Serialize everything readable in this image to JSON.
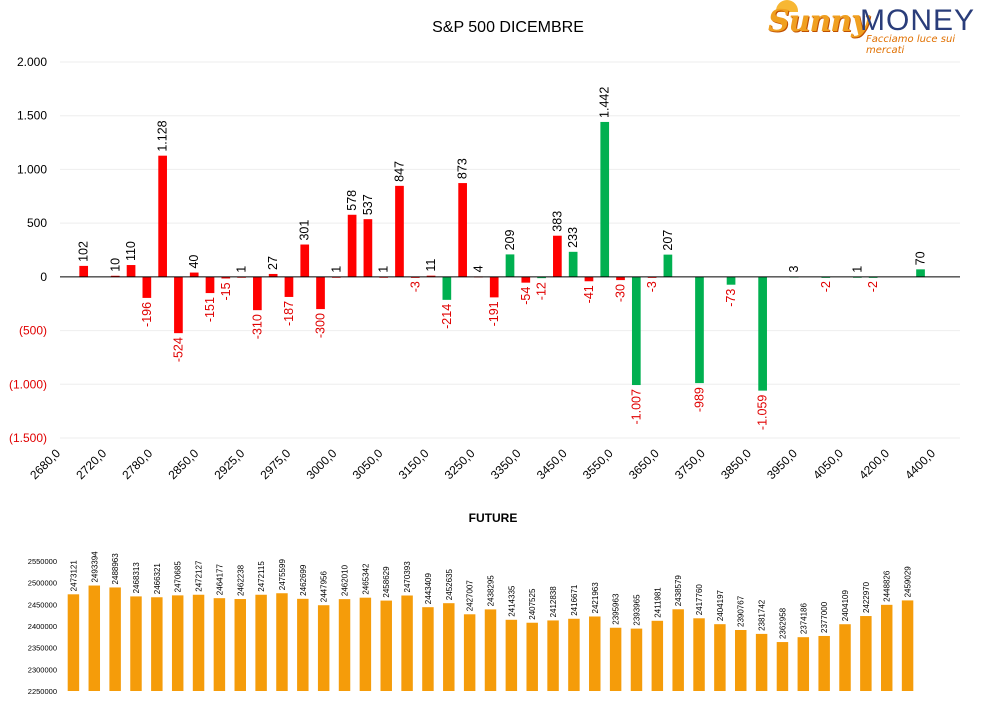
{
  "logo": {
    "brand_a": "Sunny",
    "brand_b": "MONEY",
    "tagline": "Facciamo luce sui mercati"
  },
  "colors": {
    "call": "#ff0000",
    "put": "#00b050",
    "future": "#f59c0a",
    "negative_label": "#e00000"
  },
  "chart_data": [
    {
      "type": "bar",
      "title": "S&P 500 DICEMBRE",
      "ylim": [
        -1500,
        2000
      ],
      "yticks": [
        2000,
        1500,
        1000,
        500,
        0,
        -500,
        -1000,
        -1500
      ],
      "ytick_labels": [
        "2.000",
        "1.500",
        "1.000",
        "500",
        "0",
        "(500)",
        "(1.000)",
        "(1.500)"
      ],
      "xtick_labels": [
        "2680,0",
        "2720,0",
        "2780,0",
        "2850,0",
        "2925,0",
        "2975,0",
        "3000,0",
        "3050,0",
        "3150,0",
        "3250,0",
        "3350,0",
        "3450,0",
        "3550,0",
        "3650,0",
        "3750,0",
        "3850,0",
        "3950,0",
        "4050,0",
        "4200,0",
        "4400,0"
      ],
      "bars": [
        {
          "slot": 1,
          "value": 102,
          "label": "102",
          "color": "red"
        },
        {
          "slot": 3,
          "value": 10,
          "label": "10",
          "color": "red"
        },
        {
          "slot": 4,
          "value": 110,
          "label": "110",
          "color": "red"
        },
        {
          "slot": 5,
          "value": -196,
          "label": "-196",
          "color": "red"
        },
        {
          "slot": 6,
          "value": 1128,
          "label": "1.128",
          "color": "red"
        },
        {
          "slot": 7,
          "value": -524,
          "label": "-524",
          "color": "red"
        },
        {
          "slot": 8,
          "value": 40,
          "label": "40",
          "color": "red"
        },
        {
          "slot": 9,
          "value": -151,
          "label": "-151",
          "color": "red"
        },
        {
          "slot": 10,
          "value": -15,
          "label": "-15",
          "color": "red"
        },
        {
          "slot": 11,
          "value": 1,
          "label": "1",
          "color": "red"
        },
        {
          "slot": 12,
          "value": -310,
          "label": "-310",
          "color": "red"
        },
        {
          "slot": 13,
          "value": 27,
          "label": "27",
          "color": "red"
        },
        {
          "slot": 14,
          "value": -187,
          "label": "-187",
          "color": "red"
        },
        {
          "slot": 15,
          "value": 301,
          "label": "301",
          "color": "red"
        },
        {
          "slot": 16,
          "value": -300,
          "label": "-300",
          "color": "red"
        },
        {
          "slot": 17,
          "value": 1,
          "label": "1",
          "color": "red"
        },
        {
          "slot": 18,
          "value": 578,
          "label": "578",
          "color": "red"
        },
        {
          "slot": 19,
          "value": 537,
          "label": "537",
          "color": "red"
        },
        {
          "slot": 20,
          "value": 1,
          "label": "1",
          "color": "red"
        },
        {
          "slot": 21,
          "value": 847,
          "label": "847",
          "color": "red"
        },
        {
          "slot": 22,
          "value": -3,
          "label": "-3",
          "color": "red"
        },
        {
          "slot": 23,
          "value": 11,
          "label": "11",
          "color": "red"
        },
        {
          "slot": 24,
          "value": -214,
          "label": "-214",
          "color": "green"
        },
        {
          "slot": 25,
          "value": 873,
          "label": "873",
          "color": "red"
        },
        {
          "slot": 26,
          "value": 4,
          "label": "4",
          "color": "red"
        },
        {
          "slot": 27,
          "value": -191,
          "label": "-191",
          "color": "red"
        },
        {
          "slot": 28,
          "value": 209,
          "label": "209",
          "color": "green"
        },
        {
          "slot": 29,
          "value": -54,
          "label": "-54",
          "color": "red"
        },
        {
          "slot": 30,
          "value": -12,
          "label": "-12",
          "color": "green"
        },
        {
          "slot": 31,
          "value": 383,
          "label": "383",
          "color": "red"
        },
        {
          "slot": 32,
          "value": 233,
          "label": "233",
          "color": "green"
        },
        {
          "slot": 33,
          "value": -41,
          "label": "-41",
          "color": "red"
        },
        {
          "slot": 34,
          "value": 1442,
          "label": "1.442",
          "color": "green"
        },
        {
          "slot": 35,
          "value": -30,
          "label": "-30",
          "color": "red"
        },
        {
          "slot": 36,
          "value": -1007,
          "label": "-1.007",
          "color": "green"
        },
        {
          "slot": 37,
          "value": -3,
          "label": "-3",
          "color": "red"
        },
        {
          "slot": 38,
          "value": 207,
          "label": "207",
          "color": "green"
        },
        {
          "slot": 40,
          "value": -989,
          "label": "-989",
          "color": "green"
        },
        {
          "slot": 42,
          "value": -73,
          "label": "-73",
          "color": "green"
        },
        {
          "slot": 44,
          "value": -1059,
          "label": "-1.059",
          "color": "green"
        },
        {
          "slot": 46,
          "value": 3,
          "label": "3",
          "color": "green"
        },
        {
          "slot": 48,
          "value": -2,
          "label": "-2",
          "color": "green"
        },
        {
          "slot": 50,
          "value": 1,
          "label": "1",
          "color": "green"
        },
        {
          "slot": 51,
          "value": -2,
          "label": "-2",
          "color": "green"
        },
        {
          "slot": 54,
          "value": 70,
          "label": "70",
          "color": "green"
        }
      ]
    },
    {
      "type": "bar",
      "title": "FUTURE",
      "ylim": [
        2250000,
        2550000
      ],
      "yticks": [
        2550000,
        2500000,
        2450000,
        2400000,
        2350000,
        2300000,
        2250000
      ],
      "ytick_labels": [
        "2550000",
        "2500000",
        "2450000",
        "2400000",
        "2350000",
        "2300000",
        "2250000"
      ],
      "values": [
        2473121,
        2493394,
        2488963,
        2468313,
        2466321,
        2470685,
        2472127,
        2464177,
        2462238,
        2472115,
        2475599,
        2462699,
        2447956,
        2462010,
        2465342,
        2458629,
        2470393,
        2443409,
        2452635,
        2427007,
        2438295,
        2414335,
        2407525,
        2412838,
        2416671,
        2421963,
        2395963,
        2393965,
        2411981,
        2438579,
        2417760,
        2404197,
        2390767,
        2381742,
        2362958,
        2374186,
        2377000,
        2404109,
        2422970,
        2448826,
        2459029
      ],
      "labels": [
        "2473121",
        "2493394",
        "2488963",
        "2468313",
        "2466321",
        "2470685",
        "2472127",
        "2464177",
        "2462238",
        "2472115",
        "2475599",
        "2462699",
        "2447956",
        "2462010",
        "2465342",
        "2458629",
        "2470393",
        "2443409",
        "2452635",
        "2427007",
        "2438295",
        "2414335",
        "2407525",
        "2412838",
        "2416671",
        "2421963",
        "2395963",
        "2393965",
        "2411981",
        "2438579",
        "2417760",
        "2404197",
        "2390767",
        "2381742",
        "2362958",
        "2374186",
        "2377000",
        "2404109",
        "2422970",
        "2448826",
        "2459029"
      ]
    }
  ]
}
